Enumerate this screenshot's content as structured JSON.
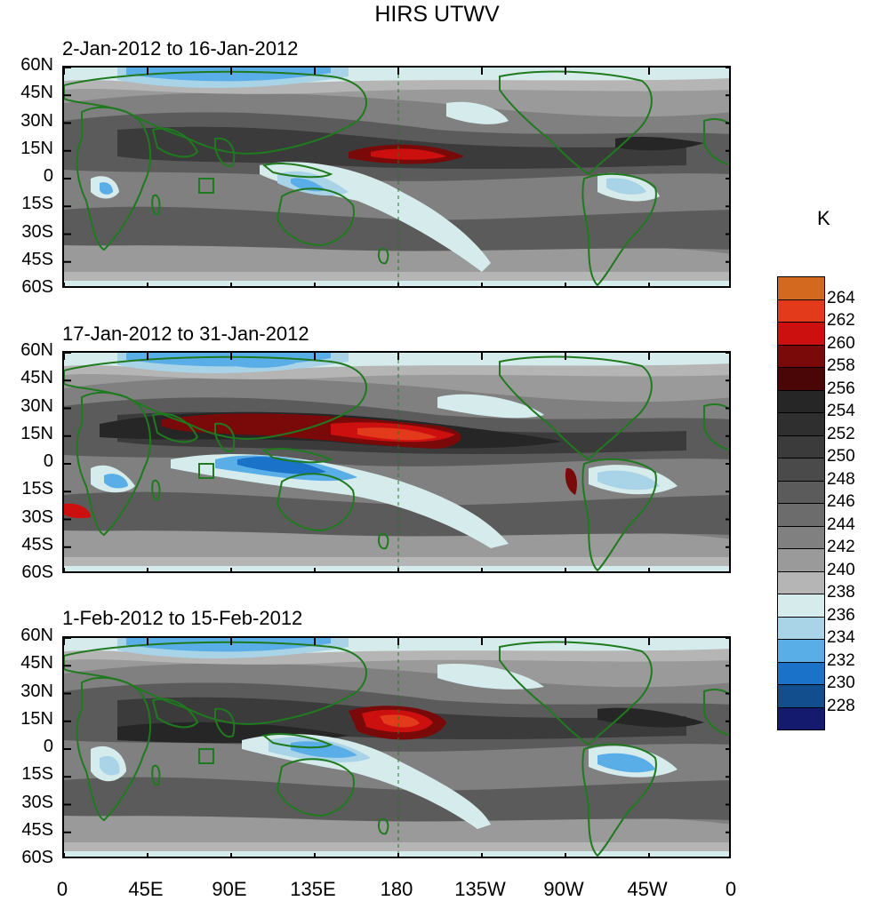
{
  "title": "HIRS UTWV",
  "unit": "K",
  "panels": [
    {
      "title": "2-Jan-2012 to 16-Jan-2012"
    },
    {
      "title": "17-Jan-2012 to 31-Jan-2012"
    },
    {
      "title": "1-Feb-2012 to 15-Feb-2012"
    }
  ],
  "lat_labels": [
    "60N",
    "45N",
    "30N",
    "15N",
    "0",
    "15S",
    "30S",
    "45S",
    "60S"
  ],
  "lon_labels": [
    "0",
    "45E",
    "90E",
    "135E",
    "180",
    "135W",
    "90W",
    "45W",
    "0"
  ],
  "colorbar": {
    "labels": [
      "264",
      "262",
      "260",
      "258",
      "256",
      "254",
      "252",
      "250",
      "248",
      "246",
      "244",
      "242",
      "240",
      "238",
      "236",
      "234",
      "232",
      "230",
      "228"
    ],
    "colors": [
      "#d2691e",
      "#e23a1a",
      "#cc1010",
      "#7a0a0a",
      "#4a0606",
      "#262626",
      "#2f2f2f",
      "#3b3b3b",
      "#4a4a4a",
      "#5b5b5b",
      "#6c6c6c",
      "#808080",
      "#9a9a9a",
      "#b5b5b5",
      "#d6ecec",
      "#a9d3e6",
      "#5aaee8",
      "#1a72c9",
      "#124e8e",
      "#141a6e"
    ]
  },
  "colors": {
    "land_outline": "#1f7a1f",
    "meridian": "#1f7a1f"
  }
}
